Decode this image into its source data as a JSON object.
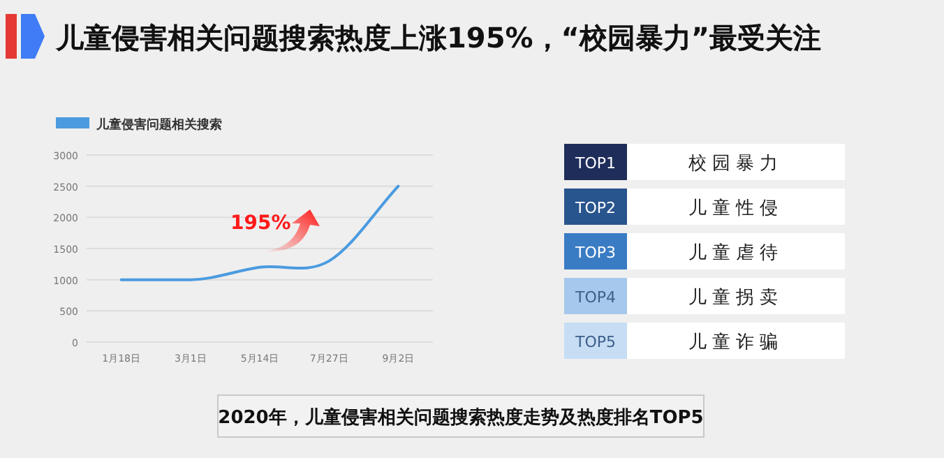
{
  "chart_data": [
    {
      "type": "line",
      "title": "儿童侵害相关问题搜索热度上涨195%，“校园暴力”最受关注",
      "categories": [
        "1月18日",
        "3月1日",
        "5月14日",
        "7月27日",
        "9月2日"
      ],
      "series": [
        {
          "name": "儿童侵害问题相关搜索",
          "color": "#4a9be0",
          "values": [
            1000,
            1000,
            1200,
            1300,
            2500
          ]
        }
      ],
      "ylim": [
        0,
        3000
      ],
      "yticks": [
        0,
        500,
        1000,
        1500,
        2000,
        2500,
        3000
      ],
      "grid": "y",
      "legend": "top left",
      "annotations": [
        "195%",
        "2020年，儿童侵害相关问题搜索热度走势及热度排名TOP5"
      ]
    },
    {
      "type": "other",
      "categories": [
        "TOP1",
        "TOP2",
        "TOP3",
        "TOP4",
        "TOP5"
      ],
      "annotations": [
        "校园暴力",
        "儿童性侵",
        "儿童虐待",
        "儿童拐卖",
        "儿童诈骗"
      ],
      "colors": [
        "#1f2d5a",
        "#29558e",
        "#3a7cc3",
        "#a5c8ec",
        "#c6ddf4"
      ]
    }
  ]
}
